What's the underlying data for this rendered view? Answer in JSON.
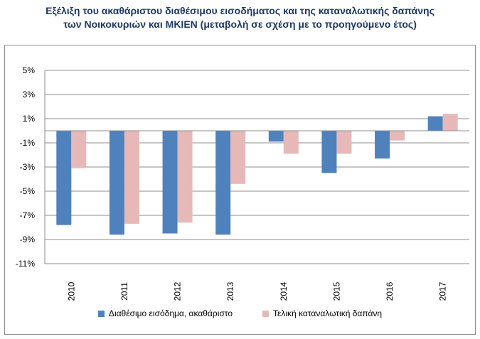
{
  "chart_data": {
    "type": "bar",
    "title_line1": "Εξέλιξη του ακαθάριστου διαθέσιμου εισοδήματος και της καταναλωτικής δαπάνης",
    "title_line2": "των Νοικοκυριών και ΜΚΙΕΝ (μεταβολή σε σχέση με το προηγούμενο έτος)",
    "categories": [
      "2010",
      "2011",
      "2012",
      "2013",
      "2014",
      "2015",
      "2016",
      "2017"
    ],
    "series": [
      {
        "name": "Διαθέσιμο εισόδημα, ακαθάριστο",
        "color": "#4f81bd",
        "values": [
          -7.8,
          -8.6,
          -8.5,
          -8.6,
          -0.9,
          -3.5,
          -2.3,
          1.2
        ]
      },
      {
        "name": "Τελική καταναλωτική δαπάνη",
        "color": "#e6b9b8",
        "values": [
          -3.1,
          -7.7,
          -7.6,
          -4.4,
          -1.9,
          -1.9,
          -0.8,
          1.4
        ]
      }
    ],
    "yticks": [
      "5%",
      "3%",
      "1%",
      "-1%",
      "-3%",
      "-5%",
      "-7%",
      "-9%",
      "-11%"
    ],
    "ylim": [
      -11,
      5
    ],
    "grid": true,
    "legend_position": "bottom"
  }
}
